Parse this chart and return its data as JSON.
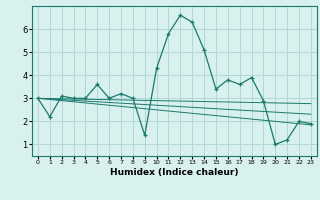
{
  "xlabel": "Humidex (Indice chaleur)",
  "x_values": [
    0,
    1,
    2,
    3,
    4,
    5,
    6,
    7,
    8,
    9,
    10,
    11,
    12,
    13,
    14,
    15,
    16,
    17,
    18,
    19,
    20,
    21,
    22,
    23
  ],
  "main_line": [
    3.0,
    2.2,
    3.1,
    3.0,
    3.0,
    3.6,
    3.0,
    3.2,
    3.0,
    1.4,
    4.3,
    5.8,
    6.6,
    6.3,
    5.1,
    3.4,
    3.8,
    3.6,
    3.9,
    2.9,
    1.0,
    1.2,
    2.0,
    1.9
  ],
  "trend1": [
    3.0,
    2.97,
    2.94,
    2.91,
    2.88,
    2.85,
    2.82,
    2.79,
    2.76,
    2.73,
    2.7,
    2.67,
    2.64,
    2.61,
    2.58,
    2.55,
    2.52,
    2.49,
    2.46,
    2.43,
    2.4,
    2.37,
    2.34,
    2.31
  ],
  "trend2": [
    3.0,
    2.99,
    2.98,
    2.97,
    2.96,
    2.95,
    2.94,
    2.93,
    2.92,
    2.91,
    2.9,
    2.89,
    2.88,
    2.87,
    2.86,
    2.85,
    2.84,
    2.83,
    2.82,
    2.81,
    2.8,
    2.79,
    2.78,
    2.77
  ],
  "trend3": [
    3.0,
    2.95,
    2.9,
    2.85,
    2.8,
    2.75,
    2.7,
    2.65,
    2.6,
    2.55,
    2.5,
    2.45,
    2.4,
    2.35,
    2.3,
    2.25,
    2.2,
    2.15,
    2.1,
    2.05,
    2.0,
    1.95,
    1.9,
    1.85
  ],
  "line_color": "#1a7a6e",
  "bg_color": "#d8f0ee",
  "grid_color": "#b0d8d4",
  "ylim": [
    0.5,
    7.0
  ],
  "xlim": [
    -0.5,
    23.5
  ],
  "yticks": [
    1,
    2,
    3,
    4,
    5,
    6
  ],
  "xticks": [
    0,
    1,
    2,
    3,
    4,
    5,
    6,
    7,
    8,
    9,
    10,
    11,
    12,
    13,
    14,
    15,
    16,
    17,
    18,
    19,
    20,
    21,
    22,
    23
  ]
}
